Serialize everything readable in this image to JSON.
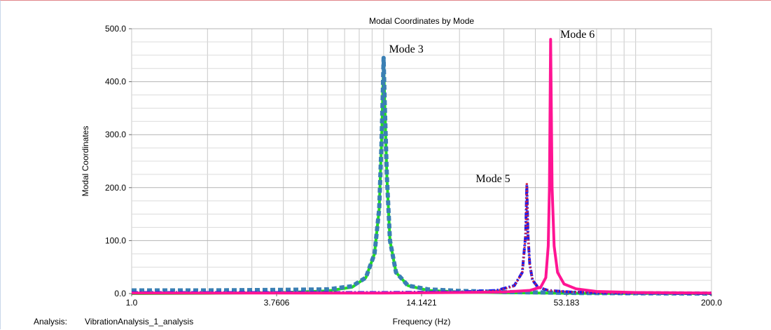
{
  "chart_data": {
    "type": "line",
    "title": "Modal Coordinates by Mode",
    "xlabel": "Frequency (Hz)",
    "ylabel": "Modal Coordinates",
    "xscale": "log",
    "xlim": [
      1.0,
      200.0
    ],
    "ylim": [
      0,
      500
    ],
    "x_ticks": [
      1.0,
      3.7606,
      14.1421,
      53.183,
      200.0
    ],
    "x_tick_labels": [
      "1.0",
      "3.7606",
      "14.1421",
      "53.183",
      "200.0"
    ],
    "y_ticks": [
      0,
      100,
      200,
      300,
      400,
      500
    ],
    "y_tick_labels": [
      "0.0",
      "100.0",
      "200.0",
      "300.0",
      "400.0",
      "500.0"
    ],
    "grid": true,
    "series": [
      {
        "color": "#22dd22",
        "style": "solid",
        "x": [
          1.0,
          2.0,
          4.0,
          6.0,
          7.5,
          8.5,
          9.2,
          9.6,
          9.8,
          9.9,
          10.0,
          10.1,
          10.3,
          10.6,
          11.2,
          12.5,
          15.0,
          20.0,
          30.0,
          60.0,
          200.0
        ],
        "y": [
          0,
          0.5,
          2,
          5,
          12,
          30,
          75,
          160,
          280,
          360,
          440,
          360,
          220,
          100,
          40,
          15,
          6,
          3,
          1.5,
          0.5,
          0
        ]
      },
      {
        "color": "#3a7fb4",
        "style": "dashed",
        "x": [
          1.0,
          2.0,
          4.0,
          6.0,
          7.5,
          8.5,
          9.2,
          9.6,
          9.8,
          9.9,
          10.0,
          10.1,
          10.3,
          10.6,
          11.2,
          12.5,
          15.0,
          20.0,
          30.0,
          60.0,
          200.0
        ],
        "y": [
          6,
          6,
          7,
          8,
          14,
          30,
          75,
          160,
          280,
          360,
          445,
          360,
          220,
          100,
          40,
          15,
          8,
          5,
          3,
          1,
          0
        ]
      },
      {
        "color": "#1a1aee",
        "style": "dashdot",
        "x": [
          1.0,
          10.0,
          20.0,
          28.0,
          33.0,
          35.5,
          36.6,
          37.0,
          37.4,
          38.0,
          39.0,
          41.0,
          45.0,
          55.0,
          80.0,
          200.0
        ],
        "y": [
          2,
          2,
          3,
          6,
          15,
          40,
          110,
          205,
          110,
          55,
          25,
          12,
          6,
          3,
          1,
          0
        ]
      },
      {
        "color": "#cc2244",
        "style": "dotted",
        "x": [
          1.0,
          10.0,
          20.0,
          28.0,
          33.0,
          35.5,
          36.6,
          37.0,
          37.4,
          38.0,
          39.0,
          41.0,
          45.0,
          55.0,
          80.0,
          200.0
        ],
        "y": [
          1,
          1,
          2,
          5,
          14,
          40,
          110,
          210,
          110,
          55,
          25,
          12,
          6,
          3,
          1,
          0
        ]
      },
      {
        "color": "#ff1493",
        "style": "solid",
        "x": [
          1.0,
          10.0,
          20.0,
          30.0,
          38.0,
          42.0,
          44.0,
          45.0,
          45.5,
          46.0,
          46.6,
          47.5,
          49.0,
          52.0,
          58.0,
          70.0,
          100.0,
          200.0
        ],
        "y": [
          1,
          1,
          2,
          3,
          6,
          12,
          30,
          90,
          200,
          480,
          200,
          90,
          40,
          18,
          9,
          4,
          2,
          1
        ]
      }
    ],
    "annotations": [
      {
        "text": "Mode 3",
        "x": 10.5,
        "y": 455
      },
      {
        "text": "Mode 5",
        "x": 23.2,
        "y": 210
      },
      {
        "text": "Mode 6",
        "x": 50.2,
        "y": 483
      }
    ]
  },
  "footer": {
    "analysis_label": "Analysis:",
    "analysis_value": "VibrationAnalysis_1_analysis"
  }
}
